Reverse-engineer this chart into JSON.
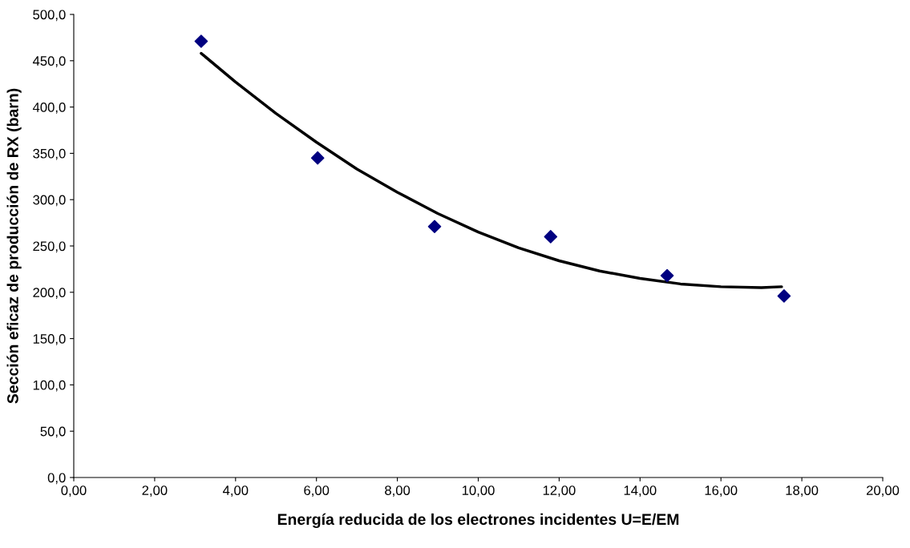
{
  "chart_data": {
    "type": "scatter",
    "xlabel": "Energía reducida de los electrones incidentes U=E/EM",
    "ylabel": "Sección eficaz de producción de RX (barn)",
    "xlim": [
      0,
      20
    ],
    "ylim": [
      0,
      500
    ],
    "xticks": [
      {
        "value": 0,
        "label": "0,00"
      },
      {
        "value": 2,
        "label": "2,00"
      },
      {
        "value": 4,
        "label": "4,00"
      },
      {
        "value": 6,
        "label": "6,00"
      },
      {
        "value": 8,
        "label": "8,00"
      },
      {
        "value": 10,
        "label": "10,00"
      },
      {
        "value": 12,
        "label": "12,00"
      },
      {
        "value": 14,
        "label": "14,00"
      },
      {
        "value": 16,
        "label": "16,00"
      },
      {
        "value": 18,
        "label": "18,00"
      },
      {
        "value": 20,
        "label": "20,00"
      }
    ],
    "yticks": [
      {
        "value": 0,
        "label": "0,0"
      },
      {
        "value": 50,
        "label": "50,0"
      },
      {
        "value": 100,
        "label": "100,0"
      },
      {
        "value": 150,
        "label": "150,0"
      },
      {
        "value": 200,
        "label": "200,0"
      },
      {
        "value": 250,
        "label": "250,0"
      },
      {
        "value": 300,
        "label": "300,0"
      },
      {
        "value": 350,
        "label": "350,0"
      },
      {
        "value": 400,
        "label": "400,0"
      },
      {
        "value": 450,
        "label": "450,0"
      },
      {
        "value": 500,
        "label": "500,0"
      }
    ],
    "grid": false,
    "legend": false,
    "series": [
      {
        "color": "#000080",
        "marker": "diamond",
        "x": [
          3.15,
          6.03,
          8.92,
          11.79,
          14.67,
          17.56
        ],
        "values": [
          471,
          345,
          271,
          260,
          218,
          196
        ]
      },
      {
        "type": "line",
        "color": "#000000",
        "marker": "none",
        "line_style": "solid",
        "x": [
          3.15,
          4,
          5,
          6,
          7,
          8,
          9,
          10,
          11,
          12,
          13,
          14,
          15,
          16,
          17,
          17.5
        ],
        "values": [
          458,
          427,
          393,
          362,
          333,
          308,
          285,
          265,
          248,
          234,
          223,
          215,
          209,
          206,
          205,
          206
        ]
      }
    ]
  }
}
